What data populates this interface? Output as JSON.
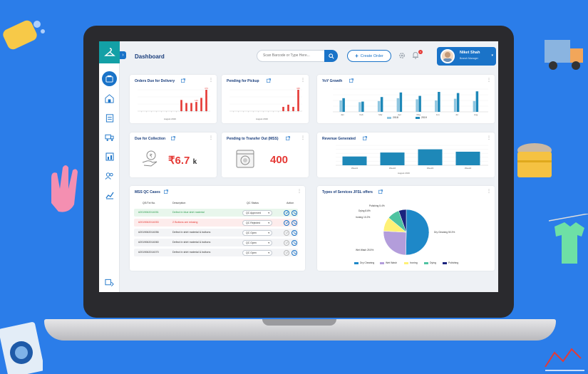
{
  "header": {
    "title": "Dashboard",
    "search_placeholder": "Scan Barcode or Type Here...",
    "create_order_label": "Create Order",
    "notification_count": "0",
    "user": {
      "name": "Niket Shah",
      "role": "Branch Manager"
    }
  },
  "cards": {
    "orders_due": {
      "title": "Orders Due for Delivery",
      "footer": "August 2019",
      "chart_data": {
        "type": "bar",
        "values": [
          0,
          0,
          0,
          0,
          0,
          0,
          0,
          0,
          11,
          8,
          8,
          9,
          13,
          21
        ],
        "data_labels": [
          "",
          "",
          "",
          "",
          "",
          "",
          "",
          "",
          "",
          "",
          "",
          "143",
          "",
          "373"
        ],
        "color": "#e53935"
      }
    },
    "pending_pickup": {
      "title": "Pending for Pickup",
      "footer": "August 2019",
      "chart_data": {
        "type": "bar",
        "values": [
          0,
          0,
          0,
          0,
          0,
          0,
          0,
          0,
          0,
          0,
          6,
          9,
          6,
          30
        ],
        "data_labels": [
          "",
          "",
          "",
          "",
          "",
          "",
          "",
          "",
          "",
          "",
          "",
          "",
          "",
          "345"
        ],
        "color": "#e53935"
      }
    },
    "yoy_growth": {
      "title": "YoY Growth",
      "chart_data": {
        "type": "bar",
        "categories": [
          "Jan",
          "Feb",
          "Mar",
          "Apr",
          "May",
          "Jun",
          "Jul",
          "Aug"
        ],
        "series": [
          {
            "name": "2018",
            "values": [
              100,
              85,
              95,
              120,
              110,
              100,
              115,
              95
            ]
          },
          {
            "name": "2019",
            "values": [
              120,
              90,
              130,
              170,
              140,
              175,
              165,
              180
            ]
          }
        ],
        "colors": [
          "#8fc6e0",
          "#1e88b8"
        ]
      }
    },
    "due_collection": {
      "title": "Due for Collection",
      "value": "6.7",
      "suffix": "k",
      "currency": "₹"
    },
    "pending_transfer": {
      "title": "Pending to Transfer Out (MSS)",
      "value": "400"
    },
    "revenue": {
      "title": "Revenue Generated",
      "footer": "August 2019",
      "chart_data": {
        "type": "bar",
        "categories": [
          "Week1",
          "Week2",
          "Week3",
          "Week4"
        ],
        "values": [
          55,
          80,
          100,
          85
        ],
        "ylim": [
          0,
          125
        ],
        "color": "#1e88b8"
      }
    },
    "mss_qc": {
      "title": "MSS QC Cases",
      "columns": [
        "QS/Txt No.",
        "Description",
        "QC Status",
        "Action"
      ],
      "rows": [
        {
          "id": "#2019062014051",
          "desc": "Defect in blue shirt material",
          "status": "QC Approved",
          "tone": "green"
        },
        {
          "id": "#2019062014053",
          "desc": "2 Buttons are missing",
          "status": "QC Rejected",
          "tone": "red"
        },
        {
          "id": "#2019062014056",
          "desc": "Defect in shirt material & buttons",
          "status": "QC Open",
          "tone": "grey"
        },
        {
          "id": "#2019062014060",
          "desc": "Defect in shirt material & buttons",
          "status": "QC Open",
          "tone": "grey"
        },
        {
          "id": "#2019062014070",
          "desc": "Defect in shirt material & buttons",
          "status": "QC Open",
          "tone": "grey"
        }
      ]
    },
    "services": {
      "title": "Types of Services JFSL offers",
      "chart_data": {
        "type": "pie",
        "slices": [
          {
            "label": "Dry Cleaning",
            "value": 50.3,
            "text": "Dry Cleaning 50.3%",
            "color": "#1e88c8"
          },
          {
            "label": "Wet Wash",
            "value": 25.5,
            "text": "Wet Wash 25.5%",
            "color": "#b39ddb"
          },
          {
            "label": "Ironing",
            "value": 10.2,
            "text": "Ironing 10.2%",
            "color": "#fff176"
          },
          {
            "label": "Dying",
            "value": 8.6,
            "text": "Dying 8.6%",
            "color": "#4fc3a1"
          },
          {
            "label": "Polishing",
            "value": 5.4,
            "text": "Polishing 5.4%",
            "color": "#1a237e"
          }
        ]
      }
    }
  }
}
